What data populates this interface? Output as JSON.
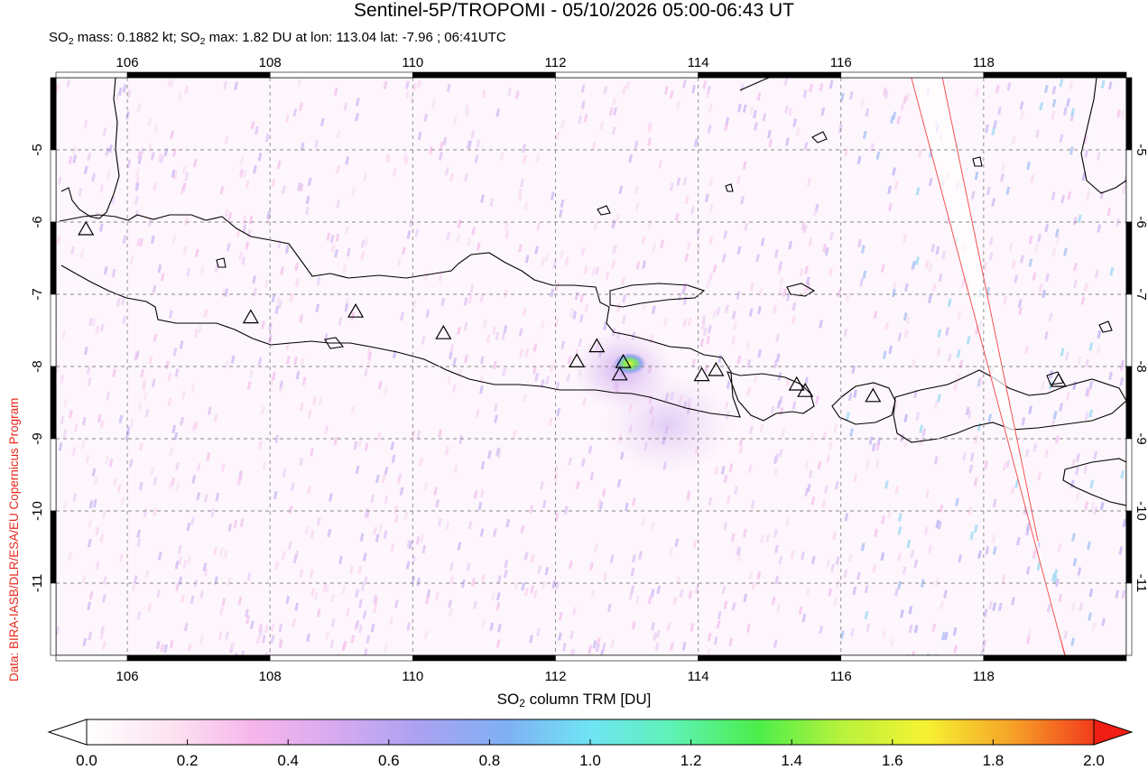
{
  "title": "Sentinel-5P/TROPOMI - 05/10/2026 05:00-06:43 UT",
  "subtitle": {
    "part1": "SO",
    "sub1": "2",
    "part2": " mass: 0.1882 kt; SO",
    "sub2": "2",
    "part3": " max: 1.82 DU at lon: 113.04 lat: -7.96 ; 06:41UTC"
  },
  "credit": "Data: BIRA-IASB/DLR/ESA/EU Copernicus Program",
  "colorbar": {
    "label_pre": "SO",
    "label_sub": "2",
    "label_post": " column TRM [DU]",
    "ticks": [
      "0.0",
      "0.2",
      "0.4",
      "0.6",
      "0.8",
      "1.0",
      "1.2",
      "1.4",
      "1.6",
      "1.8",
      "2.0"
    ],
    "colors": [
      "#ffffff",
      "#fde3f0",
      "#f6b5ec",
      "#d6a9f0",
      "#a9a2f2",
      "#7fb0f4",
      "#6fe4f4",
      "#5ef2b4",
      "#4cee4a",
      "#b8f23c",
      "#f6f232",
      "#f6a428",
      "#f23c1c"
    ],
    "under_color": "#ffffff",
    "over_color": "#f01e14"
  },
  "map": {
    "lon_ticks": [
      "106",
      "108",
      "110",
      "112",
      "114",
      "116",
      "118"
    ],
    "lat_ticks": [
      "-5",
      "-6",
      "-7",
      "-8",
      "-9",
      "-10",
      "-11"
    ],
    "lon_range": [
      105,
      120
    ],
    "lat_range": [
      -12,
      -4
    ],
    "volcano_markers": [
      [
        105.42,
        -6.1
      ],
      [
        107.73,
        -7.32
      ],
      [
        109.2,
        -7.24
      ],
      [
        110.43,
        -7.54
      ],
      [
        112.3,
        -7.93
      ],
      [
        112.58,
        -7.72
      ],
      [
        112.95,
        -7.94
      ],
      [
        112.9,
        -8.11
      ],
      [
        114.05,
        -8.12
      ],
      [
        114.25,
        -8.05
      ],
      [
        115.38,
        -8.25
      ],
      [
        115.5,
        -8.34
      ],
      [
        116.45,
        -8.41
      ],
      [
        119.05,
        -8.2
      ]
    ],
    "so2_max": {
      "lon": 113.04,
      "lat": -7.96
    }
  }
}
